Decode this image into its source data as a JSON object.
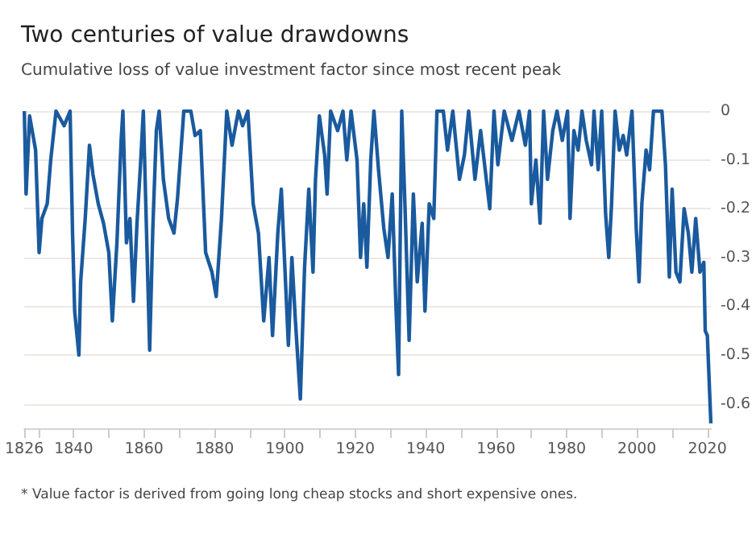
{
  "chart_data": {
    "type": "line",
    "title": "Two centuries of value drawdowns",
    "subtitle": "Cumulative loss of value investment factor since most recent peak",
    "annotations": [
      "* Value factor is derived from going long cheap stocks and short expensive ones."
    ],
    "x": [
      1826.0,
      1826.5,
      1827.5,
      1829.2,
      1830.2,
      1831,
      1832.5,
      1833.5,
      1835,
      1837.3,
      1839,
      1839.7,
      1840.3,
      1841.5,
      1842,
      1843.3,
      1844.5,
      1845.5,
      1847,
      1848.5,
      1850,
      1851,
      1852.3,
      1853.5,
      1854,
      1855,
      1856,
      1857,
      1858,
      1859,
      1859.8,
      1860.5,
      1861.6,
      1862.5,
      1863.5,
      1864.3,
      1865.5,
      1867,
      1868.5,
      1869.5,
      1871.3,
      1873.3,
      1874.5,
      1876,
      1877.5,
      1879.3,
      1880.5,
      1882,
      1883.5,
      1885,
      1886.8,
      1888,
      1889.5,
      1891,
      1892.5,
      1894,
      1895.5,
      1896.5,
      1898,
      1899,
      1900,
      1901,
      1902,
      1903,
      1904.4,
      1905.6,
      1906.8,
      1908,
      1908.7,
      1909.8,
      1911.3,
      1912,
      1913,
      1915,
      1916.5,
      1917.6,
      1918.8,
      1920.5,
      1921.5,
      1922.4,
      1923.3,
      1924.4,
      1925.3,
      1926.6,
      1928.1,
      1929.3,
      1930.5,
      1931.6,
      1932.3,
      1933.2,
      1934.1,
      1935.3,
      1936.5,
      1937.6,
      1939,
      1939.8,
      1941,
      1942.3,
      1943.2,
      1945,
      1946.2,
      1947.7,
      1949.6,
      1951,
      1952.2,
      1954,
      1955.6,
      1958.2,
      1959.4,
      1960.5,
      1962.3,
      1964.5,
      1966.5,
      1968.3,
      1969.5,
      1970,
      1971.3,
      1972.5,
      1973.5,
      1974.6,
      1976.1,
      1977.3,
      1978.8,
      1980.3,
      1981,
      1982.1,
      1983.3,
      1984.4,
      1985.6,
      1987.1,
      1987.8,
      1989,
      1990,
      1991.1,
      1992,
      1992.8,
      1993.8,
      1995,
      1996.1,
      1997.1,
      1998.6,
      1999.8,
      2000.6,
      2001.4,
      2002.6,
      2003.6,
      2004.7,
      2007.1,
      2008.1,
      2009.2,
      2010,
      2011.1,
      2012.2,
      2013.4,
      2014.6,
      2015.6,
      2016.7,
      2017.9,
      2019,
      2019.4,
      2020,
      2021
    ],
    "series": [
      {
        "color": "#1a5a9e",
        "values": [
          0,
          -0.17,
          -0.01,
          -0.08,
          -0.29,
          -0.22,
          -0.19,
          -0.1,
          0,
          -0.03,
          0,
          -0.25,
          -0.41,
          -0.5,
          -0.35,
          -0.22,
          -0.07,
          -0.13,
          -0.19,
          -0.23,
          -0.29,
          -0.43,
          -0.27,
          -0.06,
          0,
          -0.27,
          -0.22,
          -0.39,
          -0.23,
          -0.11,
          0,
          -0.19,
          -0.49,
          -0.24,
          -0.04,
          0,
          -0.14,
          -0.22,
          -0.25,
          -0.18,
          0,
          0,
          -0.05,
          -0.04,
          -0.29,
          -0.33,
          -0.38,
          -0.22,
          0,
          -0.07,
          0,
          -0.03,
          0,
          -0.19,
          -0.25,
          -0.43,
          -0.3,
          -0.46,
          -0.25,
          -0.16,
          -0.32,
          -0.48,
          -0.3,
          -0.43,
          -0.59,
          -0.32,
          -0.16,
          -0.33,
          -0.14,
          -0.01,
          -0.09,
          -0.17,
          0,
          -0.04,
          0,
          -0.1,
          0,
          -0.1,
          -0.3,
          -0.19,
          -0.32,
          -0.1,
          0,
          -0.12,
          -0.24,
          -0.3,
          -0.17,
          -0.41,
          -0.54,
          0,
          -0.19,
          -0.47,
          -0.17,
          -0.35,
          -0.23,
          -0.41,
          -0.19,
          -0.22,
          0,
          0,
          -0.08,
          0,
          -0.14,
          -0.09,
          0,
          -0.14,
          -0.04,
          -0.2,
          0,
          -0.11,
          0,
          -0.06,
          0,
          -0.07,
          0,
          -0.19,
          -0.1,
          -0.23,
          0,
          -0.14,
          -0.04,
          0,
          -0.06,
          0,
          -0.22,
          -0.04,
          -0.08,
          0,
          -0.06,
          -0.11,
          0,
          -0.12,
          0,
          -0.21,
          -0.3,
          -0.19,
          0,
          -0.08,
          -0.05,
          -0.09,
          0,
          -0.24,
          -0.35,
          -0.19,
          -0.08,
          -0.12,
          0,
          0,
          -0.11,
          -0.34,
          -0.16,
          -0.33,
          -0.35,
          -0.2,
          -0.25,
          -0.33,
          -0.22,
          -0.33,
          -0.31,
          -0.45,
          -0.46,
          -0.64
        ]
      }
    ],
    "xlim": [
      1826,
      2021
    ],
    "xticks": [
      1826,
      {
        "value": 1830,
        "label": null
      },
      1840,
      {
        "value": 1850,
        "label": null
      },
      1860,
      {
        "value": 1870,
        "label": null
      },
      1880,
      {
        "value": 1890,
        "label": null
      },
      1900,
      {
        "value": 1910,
        "label": null
      },
      1920,
      {
        "value": 1930,
        "label": null
      },
      1940,
      {
        "value": 1950,
        "label": null
      },
      1960,
      {
        "value": 1970,
        "label": null
      },
      1980,
      {
        "value": 1990,
        "label": null
      },
      2000,
      {
        "value": 2010,
        "label": null
      },
      2020
    ],
    "ylim": [
      -0.65,
      0
    ],
    "yticks": [
      0,
      -0.1,
      -0.2,
      -0.3,
      -0.4,
      -0.5,
      -0.6
    ],
    "grid": "y",
    "marker": "none",
    "line_style": "solid"
  }
}
